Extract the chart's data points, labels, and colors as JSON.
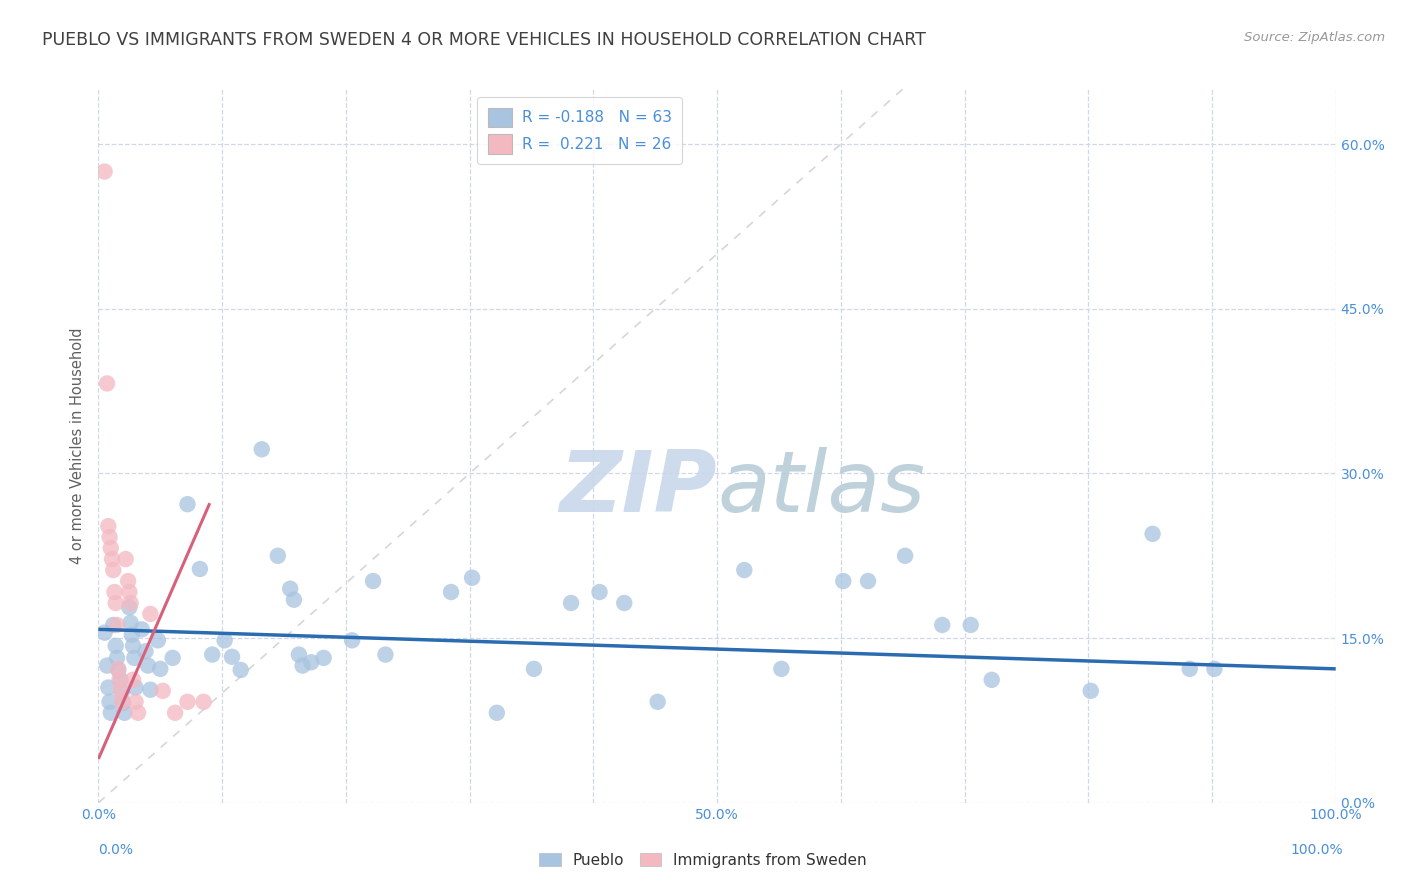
{
  "title": "PUEBLO VS IMMIGRANTS FROM SWEDEN 4 OR MORE VEHICLES IN HOUSEHOLD CORRELATION CHART",
  "source": "Source: ZipAtlas.com",
  "ylabel": "4 or more Vehicles in Household",
  "xlim": [
    0.0,
    1.0
  ],
  "ylim": [
    0.0,
    0.65
  ],
  "yticks": [
    0.0,
    0.15,
    0.3,
    0.45,
    0.6
  ],
  "ytick_labels": [
    "0.0%",
    "15.0%",
    "30.0%",
    "45.0%",
    "60.0%"
  ],
  "xtick_positions": [
    0.0,
    0.1,
    0.2,
    0.3,
    0.4,
    0.5,
    0.6,
    0.7,
    0.8,
    0.9,
    1.0
  ],
  "xtick_labels": [
    "0.0%",
    "",
    "",
    "",
    "",
    "50.0%",
    "",
    "",
    "",
    "",
    "100.0%"
  ],
  "blue_color": "#a8c4e0",
  "pink_color": "#f4b8c1",
  "blue_line_color": "#2b6cb0",
  "pink_line_color": "#d9607a",
  "diag_line_color": "#cccccc",
  "grid_color": "#d0d8e8",
  "legend_R_blue": "-0.188",
  "legend_N_blue": "63",
  "legend_R_pink": "0.221",
  "legend_N_pink": "26",
  "blue_scatter": [
    [
      0.005,
      0.155
    ],
    [
      0.007,
      0.125
    ],
    [
      0.008,
      0.105
    ],
    [
      0.009,
      0.092
    ],
    [
      0.01,
      0.082
    ],
    [
      0.012,
      0.162
    ],
    [
      0.014,
      0.143
    ],
    [
      0.015,
      0.132
    ],
    [
      0.016,
      0.121
    ],
    [
      0.018,
      0.112
    ],
    [
      0.019,
      0.101
    ],
    [
      0.02,
      0.091
    ],
    [
      0.021,
      0.082
    ],
    [
      0.025,
      0.178
    ],
    [
      0.026,
      0.164
    ],
    [
      0.027,
      0.153
    ],
    [
      0.028,
      0.143
    ],
    [
      0.029,
      0.132
    ],
    [
      0.03,
      0.105
    ],
    [
      0.035,
      0.158
    ],
    [
      0.038,
      0.138
    ],
    [
      0.04,
      0.125
    ],
    [
      0.042,
      0.103
    ],
    [
      0.048,
      0.148
    ],
    [
      0.05,
      0.122
    ],
    [
      0.06,
      0.132
    ],
    [
      0.072,
      0.272
    ],
    [
      0.082,
      0.213
    ],
    [
      0.092,
      0.135
    ],
    [
      0.102,
      0.148
    ],
    [
      0.108,
      0.133
    ],
    [
      0.115,
      0.121
    ],
    [
      0.132,
      0.322
    ],
    [
      0.145,
      0.225
    ],
    [
      0.155,
      0.195
    ],
    [
      0.158,
      0.185
    ],
    [
      0.162,
      0.135
    ],
    [
      0.165,
      0.125
    ],
    [
      0.172,
      0.128
    ],
    [
      0.182,
      0.132
    ],
    [
      0.205,
      0.148
    ],
    [
      0.222,
      0.202
    ],
    [
      0.232,
      0.135
    ],
    [
      0.285,
      0.192
    ],
    [
      0.302,
      0.205
    ],
    [
      0.322,
      0.082
    ],
    [
      0.352,
      0.122
    ],
    [
      0.382,
      0.182
    ],
    [
      0.405,
      0.192
    ],
    [
      0.425,
      0.182
    ],
    [
      0.452,
      0.092
    ],
    [
      0.522,
      0.212
    ],
    [
      0.552,
      0.122
    ],
    [
      0.602,
      0.202
    ],
    [
      0.622,
      0.202
    ],
    [
      0.652,
      0.225
    ],
    [
      0.682,
      0.162
    ],
    [
      0.705,
      0.162
    ],
    [
      0.722,
      0.112
    ],
    [
      0.802,
      0.102
    ],
    [
      0.852,
      0.245
    ],
    [
      0.882,
      0.122
    ],
    [
      0.902,
      0.122
    ]
  ],
  "pink_scatter": [
    [
      0.005,
      0.575
    ],
    [
      0.007,
      0.382
    ],
    [
      0.008,
      0.252
    ],
    [
      0.009,
      0.242
    ],
    [
      0.01,
      0.232
    ],
    [
      0.011,
      0.222
    ],
    [
      0.012,
      0.212
    ],
    [
      0.013,
      0.192
    ],
    [
      0.014,
      0.182
    ],
    [
      0.015,
      0.162
    ],
    [
      0.016,
      0.122
    ],
    [
      0.017,
      0.112
    ],
    [
      0.018,
      0.102
    ],
    [
      0.019,
      0.092
    ],
    [
      0.022,
      0.222
    ],
    [
      0.024,
      0.202
    ],
    [
      0.025,
      0.192
    ],
    [
      0.026,
      0.182
    ],
    [
      0.028,
      0.112
    ],
    [
      0.03,
      0.092
    ],
    [
      0.032,
      0.082
    ],
    [
      0.042,
      0.172
    ],
    [
      0.052,
      0.102
    ],
    [
      0.062,
      0.082
    ],
    [
      0.072,
      0.092
    ],
    [
      0.085,
      0.092
    ]
  ],
  "watermark_zip": "ZIP",
  "watermark_atlas": "atlas",
  "watermark_color_zip": "#c8d8ea",
  "watermark_color_atlas": "#b8ccd8",
  "background_color": "#ffffff",
  "title_color": "#404040",
  "axis_label_color": "#606060",
  "tick_color": "#4a90d9",
  "source_color": "#999999"
}
